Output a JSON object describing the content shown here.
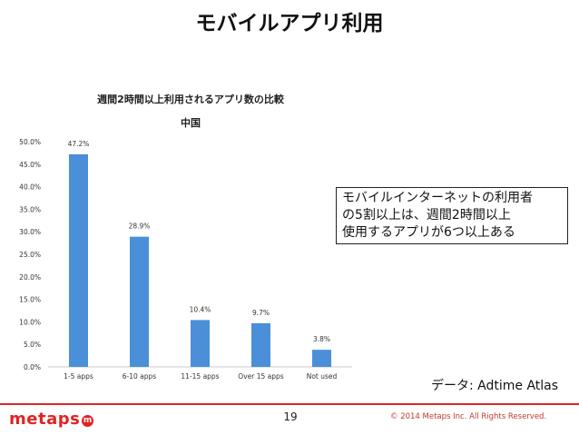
{
  "slide": {
    "title": "モバイルアプリ利用",
    "callout": "モバイルインターネットの利用者\nの5割以上は、週間2時間以上\n使用するアプリが6つ以上ある",
    "source": "データ: Adtime Atlas",
    "page_number": "19",
    "copyright": "© 2014 Metaps Inc. All Rights Reserved.",
    "logo_text": "metaps",
    "logo_mark": "m"
  },
  "chart_data": {
    "type": "bar",
    "title": "週間2時間以上利用されるアプリ数の比較",
    "subtitle": "中国",
    "categories": [
      "1-5 apps",
      "6-10 apps",
      "11-15 apps",
      "Over 15 apps",
      "Not used"
    ],
    "values": [
      47.2,
      28.9,
      10.4,
      9.7,
      3.8
    ],
    "value_labels": [
      "47.2%",
      "28.9%",
      "10.4%",
      "9.7%",
      "3.8%"
    ],
    "y_ticks": [
      "0.0%",
      "5.0%",
      "10.0%",
      "15.0%",
      "20.0%",
      "25.0%",
      "30.0%",
      "35.0%",
      "40.0%",
      "45.0%",
      "50.0%"
    ],
    "ylim": [
      0,
      50
    ],
    "xlabel": "",
    "ylabel": "",
    "grid": false,
    "bar_color": "#4a8fd8"
  }
}
